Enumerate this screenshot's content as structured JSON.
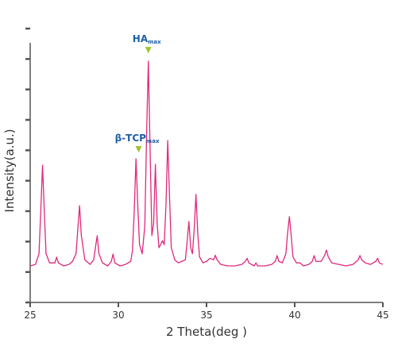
{
  "chart_data": {
    "type": "line",
    "xlabel": "2 Theta(deg )",
    "ylabel": "Intensity(a.u.)",
    "color": "#e0287d",
    "xlim": [
      25,
      45
    ],
    "xticks": [
      25,
      30,
      35,
      40,
      45
    ],
    "ylim": [
      0,
      9
    ],
    "yticks": [
      0,
      1,
      2,
      3,
      4,
      5,
      6,
      7,
      8,
      9
    ],
    "ytick_labels": false,
    "annotations": [
      {
        "text": "HA",
        "subscript": "max",
        "x": 31.7,
        "y": 8.24,
        "color": "#1f5fa8",
        "marker_color": "#9dc22a"
      },
      {
        "text": "β-TCP",
        "subscript": "max",
        "x": 31.15,
        "y": 4.98,
        "color": "#1f5fa8",
        "marker_color": "#9dc22a"
      }
    ],
    "x": [
      25.0,
      25.3,
      25.5,
      25.6,
      25.7,
      25.8,
      25.9,
      26.1,
      26.4,
      26.5,
      26.6,
      26.9,
      27.2,
      27.4,
      27.6,
      27.7,
      27.8,
      27.9,
      28.0,
      28.1,
      28.4,
      28.6,
      28.7,
      28.8,
      28.9,
      29.1,
      29.4,
      29.6,
      29.7,
      29.8,
      30.1,
      30.4,
      30.7,
      30.8,
      30.9,
      31.0,
      31.1,
      31.2,
      31.35,
      31.5,
      31.6,
      31.7,
      31.8,
      31.9,
      32.0,
      32.1,
      32.2,
      32.3,
      32.4,
      32.5,
      32.6,
      32.7,
      32.8,
      32.9,
      33.0,
      33.2,
      33.4,
      33.6,
      33.8,
      33.9,
      34.0,
      34.1,
      34.2,
      34.3,
      34.4,
      34.5,
      34.6,
      34.8,
      35.0,
      35.2,
      35.4,
      35.5,
      35.6,
      35.8,
      36.2,
      36.6,
      37.0,
      37.2,
      37.3,
      37.4,
      37.7,
      37.8,
      37.9,
      38.3,
      38.7,
      38.9,
      39.0,
      39.1,
      39.3,
      39.5,
      39.6,
      39.7,
      39.8,
      39.9,
      40.1,
      40.3,
      40.5,
      40.8,
      41.0,
      41.1,
      41.2,
      41.5,
      41.7,
      41.8,
      41.9,
      42.1,
      42.5,
      42.9,
      43.3,
      43.6,
      43.7,
      43.8,
      44.0,
      44.3,
      44.6,
      44.7,
      44.8,
      45.0
    ],
    "values": [
      1.2,
      1.25,
      1.6,
      3.0,
      4.51,
      3.0,
      1.6,
      1.3,
      1.3,
      1.49,
      1.3,
      1.2,
      1.25,
      1.35,
      1.6,
      2.4,
      3.18,
      2.2,
      1.8,
      1.4,
      1.25,
      1.4,
      1.8,
      2.19,
      1.6,
      1.3,
      1.2,
      1.35,
      1.59,
      1.3,
      1.2,
      1.25,
      1.35,
      1.7,
      3.0,
      4.72,
      3.2,
      1.9,
      1.6,
      2.5,
      5.5,
      7.93,
      5.0,
      2.2,
      2.6,
      4.54,
      2.6,
      1.8,
      1.9,
      2.03,
      1.9,
      3.2,
      5.32,
      3.5,
      1.8,
      1.4,
      1.3,
      1.35,
      1.4,
      2.0,
      2.66,
      1.8,
      1.6,
      2.4,
      3.55,
      2.3,
      1.5,
      1.3,
      1.35,
      1.45,
      1.4,
      1.55,
      1.4,
      1.25,
      1.2,
      1.2,
      1.25,
      1.35,
      1.45,
      1.3,
      1.2,
      1.3,
      1.2,
      1.2,
      1.25,
      1.35,
      1.54,
      1.35,
      1.3,
      1.6,
      2.3,
      2.82,
      2.2,
      1.5,
      1.3,
      1.3,
      1.2,
      1.25,
      1.35,
      1.54,
      1.35,
      1.35,
      1.55,
      1.72,
      1.5,
      1.3,
      1.25,
      1.2,
      1.25,
      1.4,
      1.54,
      1.4,
      1.3,
      1.25,
      1.35,
      1.45,
      1.3,
      1.25
    ]
  }
}
